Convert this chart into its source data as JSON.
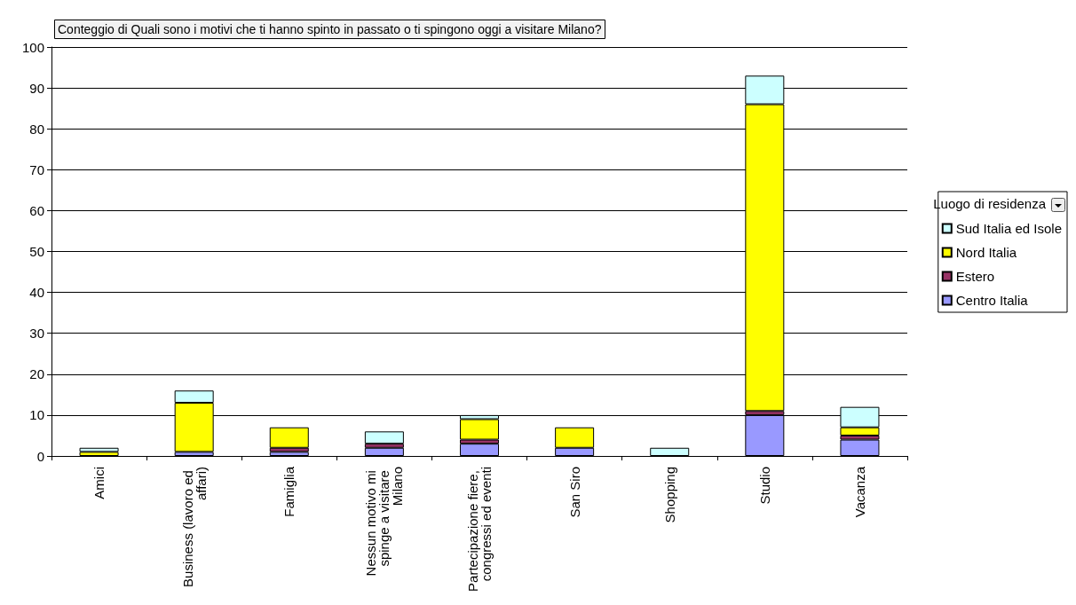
{
  "chart_data": {
    "type": "bar",
    "title": "Conteggio di Quali sono i motivi che ti hanno spinto in passato o ti spingono oggi a visitare Milano?",
    "legend_title": "Luogo di residenza",
    "categories": [
      "Amici",
      "Business (lavoro ed affari)",
      "Famiglia",
      "Nessun motivo mi spinge a visitare Milano",
      "Partecipazione fiere, congressi ed eventi",
      "San Siro",
      "Shopping",
      "Studio",
      "Vacanza"
    ],
    "series": [
      {
        "name": "Centro Italia",
        "color": "#9999ff",
        "values": [
          0,
          1,
          1,
          2,
          3,
          2,
          0,
          10,
          4
        ]
      },
      {
        "name": "Estero",
        "color": "#993366",
        "values": [
          0,
          0,
          1,
          1,
          1,
          0,
          0,
          1,
          1
        ]
      },
      {
        "name": "Nord Italia",
        "color": "#ffff00",
        "values": [
          1,
          12,
          5,
          0,
          5,
          5,
          0,
          75,
          2
        ]
      },
      {
        "name": "Sud Italia ed Isole",
        "color": "#ccffff",
        "values": [
          1,
          3,
          0,
          3,
          1,
          0,
          2,
          7,
          5
        ]
      }
    ],
    "stacked": true,
    "ylim": [
      0,
      100
    ],
    "yticks": [
      0,
      10,
      20,
      30,
      40,
      50,
      60,
      70,
      80,
      90,
      100
    ],
    "grid": "y",
    "legend": "right"
  }
}
